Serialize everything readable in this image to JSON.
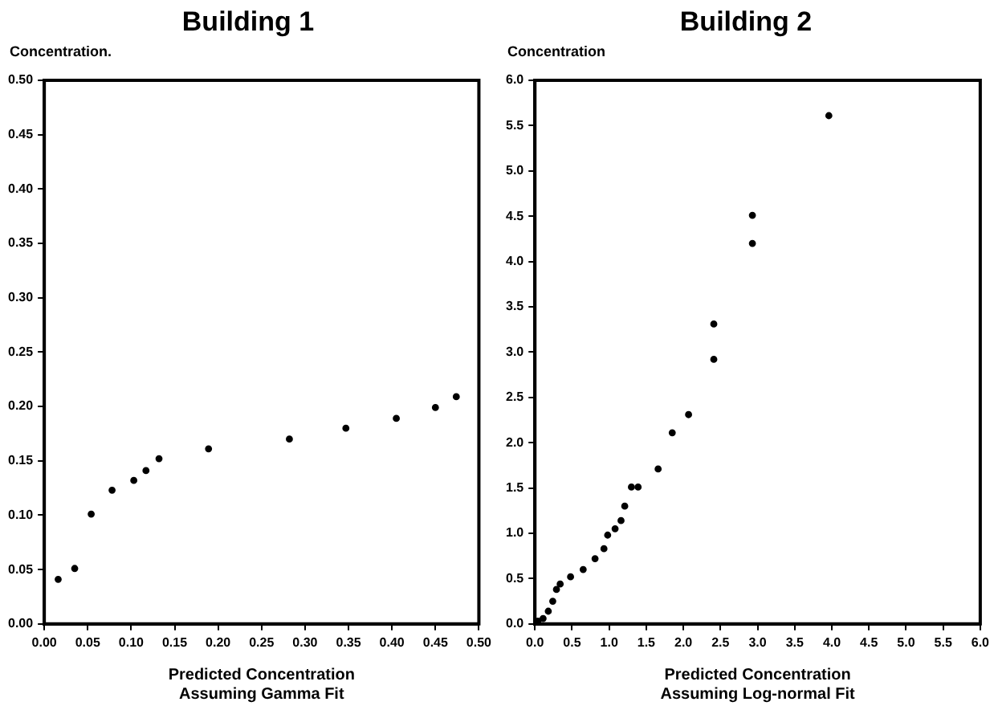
{
  "chart_data": [
    {
      "type": "scatter",
      "title": "Building 1",
      "ylabel": "Concentration.",
      "xlabel": "Predicted Concentration\nAssuming Gamma Fit",
      "marker": "circle",
      "grid": false,
      "xlim": [
        0,
        0.5
      ],
      "xticks": [
        {
          "value": 0,
          "label": "0.00"
        },
        {
          "value": 0.05,
          "label": "0.05"
        },
        {
          "value": 0.1,
          "label": "0.10"
        },
        {
          "value": 0.15,
          "label": "0.15"
        },
        {
          "value": 0.2,
          "label": "0.20"
        },
        {
          "value": 0.25,
          "label": "0.25"
        },
        {
          "value": 0.3,
          "label": "0.30"
        },
        {
          "value": 0.35,
          "label": "0.35"
        },
        {
          "value": 0.4,
          "label": "0.40"
        },
        {
          "value": 0.45,
          "label": "0.45"
        },
        {
          "value": 0.5,
          "label": "0.50"
        }
      ],
      "ylim": [
        0,
        0.5
      ],
      "yticks": [
        {
          "value": 0,
          "label": "0.00"
        },
        {
          "value": 0.05,
          "label": "0.05"
        },
        {
          "value": 0.1,
          "label": "0.10"
        },
        {
          "value": 0.15,
          "label": "0.15"
        },
        {
          "value": 0.2,
          "label": "0.20"
        },
        {
          "value": 0.25,
          "label": "0.25"
        },
        {
          "value": 0.3,
          "label": "0.30"
        },
        {
          "value": 0.35,
          "label": "0.35"
        },
        {
          "value": 0.4,
          "label": "0.40"
        },
        {
          "value": 0.45,
          "label": "0.45"
        },
        {
          "value": 0.5,
          "label": "0.50"
        }
      ],
      "series": [
        {
          "color": "#000000",
          "x": [
            0.016,
            0.035,
            0.054,
            0.078,
            0.103,
            0.117,
            0.132,
            0.189,
            0.282,
            0.347,
            0.405,
            0.45,
            0.474
          ],
          "values": [
            0.041,
            0.051,
            0.101,
            0.123,
            0.132,
            0.141,
            0.152,
            0.161,
            0.17,
            0.18,
            0.189,
            0.199,
            0.209
          ]
        }
      ]
    },
    {
      "type": "scatter",
      "title": "Building 2",
      "ylabel": "Concentration",
      "xlabel": "Predicted Concentration\nAssuming Log-normal Fit",
      "marker": "circle",
      "grid": false,
      "xlim": [
        0,
        6
      ],
      "xticks": [
        {
          "value": 0,
          "label": "0.0"
        },
        {
          "value": 0.5,
          "label": "0.5"
        },
        {
          "value": 1,
          "label": "1.0"
        },
        {
          "value": 1.5,
          "label": "1.5"
        },
        {
          "value": 2,
          "label": "2.0"
        },
        {
          "value": 2.5,
          "label": "2.5"
        },
        {
          "value": 3,
          "label": "3.0"
        },
        {
          "value": 3.5,
          "label": "3.5"
        },
        {
          "value": 4,
          "label": "4.0"
        },
        {
          "value": 4.5,
          "label": "4.5"
        },
        {
          "value": 5,
          "label": "5.0"
        },
        {
          "value": 5.5,
          "label": "5.5"
        },
        {
          "value": 6,
          "label": "6.0"
        }
      ],
      "ylim": [
        0,
        6
      ],
      "yticks": [
        {
          "value": 0,
          "label": "0.0"
        },
        {
          "value": 0.5,
          "label": "0.5"
        },
        {
          "value": 1,
          "label": "1.0"
        },
        {
          "value": 1.5,
          "label": "1.5"
        },
        {
          "value": 2,
          "label": "2.0"
        },
        {
          "value": 2.5,
          "label": "2.5"
        },
        {
          "value": 3,
          "label": "3.0"
        },
        {
          "value": 3.5,
          "label": "3.5"
        },
        {
          "value": 4,
          "label": "4.0"
        },
        {
          "value": 4.5,
          "label": "4.5"
        },
        {
          "value": 5,
          "label": "5.0"
        },
        {
          "value": 5.5,
          "label": "5.5"
        },
        {
          "value": 6,
          "label": "6.0"
        }
      ],
      "series": [
        {
          "color": "#000000",
          "x": [
            0.04,
            0.11,
            0.18,
            0.24,
            0.29,
            0.34,
            0.48,
            0.65,
            0.81,
            0.93,
            0.98,
            1.08,
            1.16,
            1.21,
            1.3,
            1.39,
            1.66,
            1.85,
            2.07,
            2.41,
            2.41,
            2.93,
            2.93,
            3.96
          ],
          "values": [
            0.03,
            0.06,
            0.14,
            0.25,
            0.38,
            0.44,
            0.52,
            0.6,
            0.72,
            0.83,
            0.98,
            1.05,
            1.14,
            1.3,
            1.51,
            1.51,
            1.71,
            2.11,
            2.31,
            2.92,
            3.31,
            4.2,
            4.51,
            5.61
          ]
        }
      ]
    }
  ]
}
